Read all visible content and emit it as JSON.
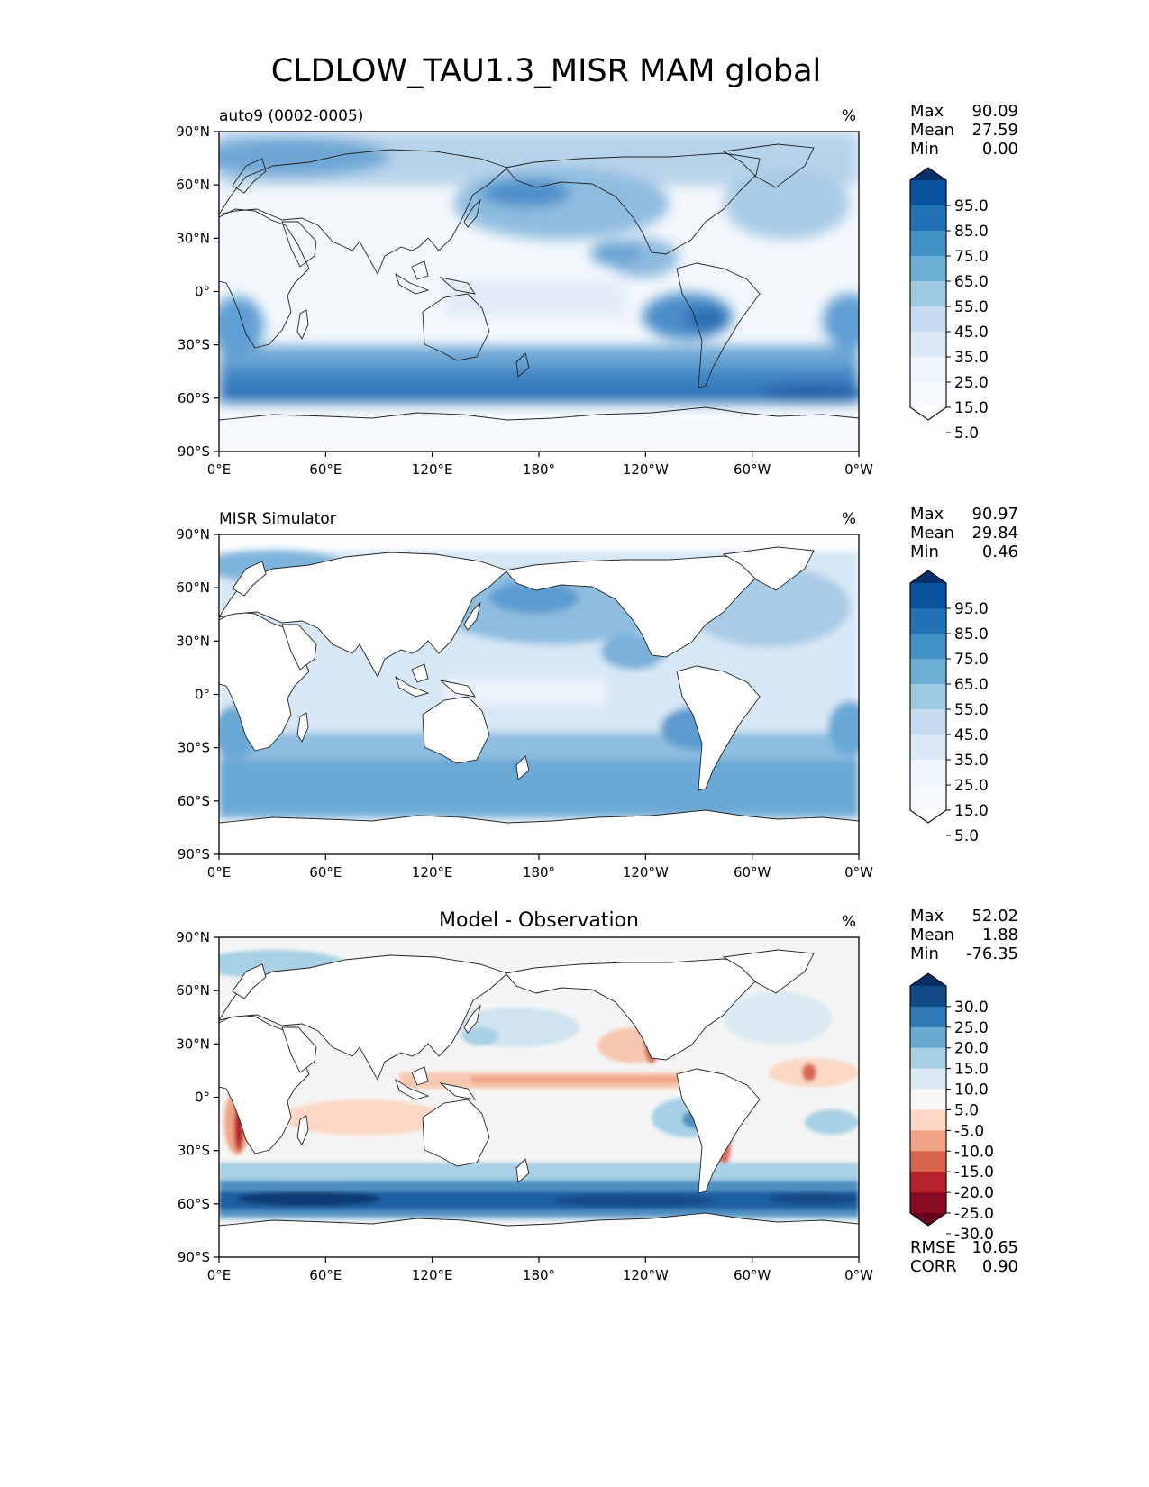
{
  "figure": {
    "title": "CLDLOW_TAU1.3_MISR MAM global"
  },
  "chart_data": [
    {
      "type": "heatmap",
      "panel": "test",
      "title": "auto9 (0002-0005)",
      "units": "%",
      "x_ticks": [
        "0°E",
        "60°E",
        "120°E",
        "180°",
        "120°W",
        "60°W",
        "0°W"
      ],
      "y_ticks": [
        "90°N",
        "60°N",
        "30°N",
        "0°",
        "30°S",
        "60°S",
        "90°S"
      ],
      "xlim": [
        0,
        360
      ],
      "ylim": [
        -90,
        90
      ],
      "stats": {
        "max_label": "Max",
        "max": "90.09",
        "mean_label": "Mean",
        "mean": "27.59",
        "min_label": "Min",
        "min": "0.00"
      },
      "colorbar": {
        "labels": [
          "95.0",
          "85.0",
          "75.0",
          "65.0",
          "55.0",
          "45.0",
          "35.0",
          "25.0",
          "15.0",
          "5.0"
        ],
        "colors": [
          "#08306b",
          "#08519c",
          "#2171b5",
          "#4292c6",
          "#6baed6",
          "#9ecae1",
          "#c6dbef",
          "#dbe9f6",
          "#eef5fc",
          "#f7fbff",
          "#ffffff"
        ]
      }
    },
    {
      "type": "heatmap",
      "panel": "reference",
      "title": "MISR Simulator",
      "units": "%",
      "x_ticks": [
        "0°E",
        "60°E",
        "120°E",
        "180°",
        "120°W",
        "60°W",
        "0°W"
      ],
      "y_ticks": [
        "90°N",
        "60°N",
        "30°N",
        "0°",
        "30°S",
        "60°S",
        "90°S"
      ],
      "xlim": [
        0,
        360
      ],
      "ylim": [
        -90,
        90
      ],
      "stats": {
        "max_label": "Max",
        "max": "90.97",
        "mean_label": "Mean",
        "mean": "29.84",
        "min_label": "Min",
        "min": "0.46"
      },
      "colorbar": {
        "labels": [
          "95.0",
          "85.0",
          "75.0",
          "65.0",
          "55.0",
          "45.0",
          "35.0",
          "25.0",
          "15.0",
          "5.0"
        ],
        "colors": [
          "#08306b",
          "#08519c",
          "#2171b5",
          "#4292c6",
          "#6baed6",
          "#9ecae1",
          "#c6dbef",
          "#dbe9f6",
          "#eef5fc",
          "#f7fbff",
          "#ffffff"
        ]
      }
    },
    {
      "type": "heatmap",
      "panel": "difference",
      "title": "Model - Observation",
      "units": "%",
      "x_ticks": [
        "0°E",
        "60°E",
        "120°E",
        "180°",
        "120°W",
        "60°W",
        "0°W"
      ],
      "y_ticks": [
        "90°N",
        "60°N",
        "30°N",
        "0°",
        "30°S",
        "60°S",
        "90°S"
      ],
      "xlim": [
        0,
        360
      ],
      "ylim": [
        -90,
        90
      ],
      "stats": {
        "max_label": "Max",
        "max": "52.02",
        "mean_label": "Mean",
        "mean": "1.88",
        "min_label": "Min",
        "min": "-76.35"
      },
      "metrics": {
        "rmse_label": "RMSE",
        "rmse": "10.65",
        "corr_label": "CORR",
        "corr": "0.90"
      },
      "colorbar": {
        "labels": [
          "30.0",
          "25.0",
          "20.0",
          "15.0",
          "10.0",
          "5.0",
          "-5.0",
          "-10.0",
          "-15.0",
          "-20.0",
          "-25.0",
          "-30.0"
        ],
        "colors": [
          "#053061",
          "#134b87",
          "#2f79b5",
          "#6aa9d0",
          "#a7d0e4",
          "#dbeaf2",
          "#f7f7f7",
          "#fbd7c4",
          "#f1a385",
          "#d9654f",
          "#b7232b",
          "#890a23",
          "#67001f"
        ]
      }
    }
  ]
}
